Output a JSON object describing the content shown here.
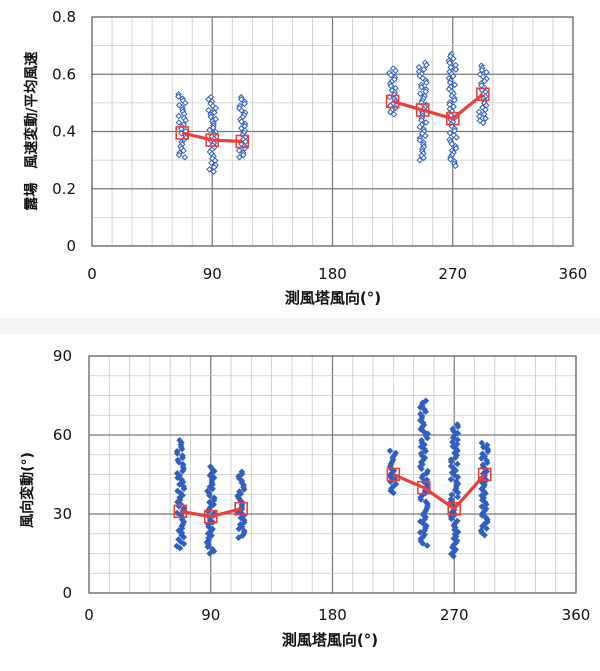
{
  "chart_data": [
    {
      "type": "scatter",
      "title": "",
      "xlabel": "測風塔風向(°)",
      "ylabel": "露場　風速変動/平均風速",
      "xlim": [
        0,
        360
      ],
      "ylim": [
        0,
        0.8
      ],
      "xticks": [
        0,
        90,
        180,
        270,
        360
      ],
      "xtick_labels": [
        "0",
        "90",
        "180",
        "270",
        "360"
      ],
      "yticks": [
        0,
        0.2,
        0.4,
        0.6,
        0.8
      ],
      "ytick_labels": [
        "0",
        "0.2",
        "0.4",
        "0.6",
        "0.8"
      ],
      "grid": true,
      "minor_grid_x_step": 15,
      "minor_grid_y_step": 0.1,
      "marker_colors": {
        "scatter": "#2f5fc4",
        "mean_line": "#e8413c",
        "mean_marker": "#e8413c",
        "major_grid": "#777777",
        "minor_grid": "#c9c9c9"
      },
      "series": [
        {
          "type": "scatter_range",
          "marker": "diamond-open",
          "points": [
            {
              "x": 67.5,
              "min": 0.31,
              "max": 0.53
            },
            {
              "x": 90,
              "min": 0.26,
              "max": 0.52
            },
            {
              "x": 112.5,
              "min": 0.31,
              "max": 0.52
            },
            {
              "x": 225,
              "min": 0.46,
              "max": 0.62
            },
            {
              "x": 247.5,
              "min": 0.3,
              "max": 0.64
            },
            {
              "x": 270,
              "min": 0.28,
              "max": 0.67
            },
            {
              "x": 292.5,
              "min": 0.43,
              "max": 0.63
            }
          ]
        },
        {
          "type": "mean_line",
          "marker": "square-open",
          "x": [
            67.5,
            90,
            112.5
          ],
          "y": [
            0.395,
            0.37,
            0.365
          ]
        },
        {
          "type": "mean_line",
          "marker": "square-open",
          "x": [
            225,
            247.5,
            270,
            292.5
          ],
          "y": [
            0.505,
            0.475,
            0.445,
            0.53
          ]
        }
      ]
    },
    {
      "type": "scatter",
      "title": "",
      "xlabel": "測風塔風向(°)",
      "ylabel": "風向変動(°)",
      "xlim": [
        0,
        360
      ],
      "ylim": [
        0,
        90
      ],
      "xticks": [
        0,
        90,
        180,
        270,
        360
      ],
      "xtick_labels": [
        "0",
        "90",
        "180",
        "270",
        "360"
      ],
      "yticks": [
        0,
        30,
        60,
        90
      ],
      "ytick_labels": [
        "0",
        "30",
        "60",
        "90"
      ],
      "grid": true,
      "minor_grid_x_step": 15,
      "minor_grid_y_step": 7.5,
      "marker_colors": {
        "scatter": "#2f5fc4",
        "mean_line": "#e8413c",
        "mean_marker": "#e8413c",
        "major_grid": "#777777",
        "minor_grid": "#c9c9c9"
      },
      "series": [
        {
          "type": "scatter_range",
          "marker": "diamond-filled",
          "points": [
            {
              "x": 67.5,
              "min": 17,
              "max": 58
            },
            {
              "x": 90,
              "min": 15,
              "max": 48
            },
            {
              "x": 112.5,
              "min": 21,
              "max": 46
            },
            {
              "x": 225,
              "min": 38,
              "max": 54
            },
            {
              "x": 247.5,
              "min": 18,
              "max": 73
            },
            {
              "x": 270,
              "min": 14,
              "max": 64
            },
            {
              "x": 292.5,
              "min": 22,
              "max": 57
            }
          ]
        },
        {
          "type": "mean_line",
          "marker": "square-open",
          "x": [
            67.5,
            90,
            112.5
          ],
          "y": [
            31,
            29,
            32
          ]
        },
        {
          "type": "mean_line",
          "marker": "square-open",
          "x": [
            225,
            247.5,
            270,
            292.5
          ],
          "y": [
            45,
            40,
            32,
            45
          ]
        }
      ]
    }
  ]
}
